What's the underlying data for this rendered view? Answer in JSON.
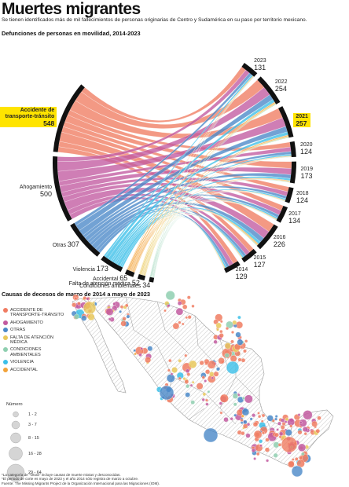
{
  "title": "Muertes migrantes",
  "subtitle": "Se tienen identificados más de mil fallecimientos de personas originarias de Centro y Sudamérica en su paso por territorio mexicano.",
  "section1_title": "Defunciones de personas en movilidad, 2014-2023",
  "section2_title": "Causas de decesos de marzo de 2014 a mayo de 2023",
  "chart_data": [
    {
      "type": "chord",
      "title": "Defunciones de personas en movilidad, 2014-2023",
      "causes": [
        {
          "name": "Accidente de transporte-tránsito",
          "value": 548,
          "color": "#f07c62",
          "highlight": true
        },
        {
          "name": "Ahogamiento",
          "value": 500,
          "color": "#c25aa0",
          "highlight": false
        },
        {
          "name": "Otras",
          "value": 307,
          "color": "#4a88c8",
          "highlight": false
        },
        {
          "name": "Violencia",
          "value": 173,
          "color": "#3bbfe8",
          "highlight": false
        },
        {
          "name": "Accidental",
          "value": 65,
          "color": "#f2a33a",
          "highlight": false
        },
        {
          "name": "Falta de atención médica",
          "value": 52,
          "color": "#e9c85a",
          "highlight": false
        },
        {
          "name": "Condiciones ambientales",
          "value": 34,
          "color": "#8fcfb0",
          "highlight": false
        }
      ],
      "years": [
        {
          "year": "2023",
          "value": 131,
          "highlight": false
        },
        {
          "year": "2022",
          "value": 254,
          "highlight": false
        },
        {
          "year": "2021",
          "value": 257,
          "highlight": true
        },
        {
          "year": "2020",
          "value": 124,
          "highlight": false
        },
        {
          "year": "2019",
          "value": 173,
          "highlight": false
        },
        {
          "year": "2018",
          "value": 124,
          "highlight": false
        },
        {
          "year": "2017",
          "value": 134,
          "highlight": false
        },
        {
          "year": "2016",
          "value": 226,
          "highlight": false
        },
        {
          "year": "2015",
          "value": 127,
          "highlight": false
        },
        {
          "year": "2014",
          "value": 129,
          "highlight": false
        }
      ]
    },
    {
      "type": "scatter",
      "title": "Causas de decesos de marzo de 2014 a mayo de 2023",
      "legend": [
        {
          "name": "Accidente de transporte-tránsito",
          "color": "#f07c62"
        },
        {
          "name": "Ahogamiento",
          "color": "#c25aa0"
        },
        {
          "name": "Otras",
          "color": "#4a88c8"
        },
        {
          "name": "Falta de atención médica",
          "color": "#e9c85a"
        },
        {
          "name": "Condiciones ambientales",
          "color": "#8fcfb0"
        },
        {
          "name": "Violencia",
          "color": "#3bbfe8"
        },
        {
          "name": "Accidental",
          "color": "#f2a33a"
        }
      ],
      "size_legend": {
        "title": "Número",
        "classes": [
          "1 - 2",
          "3 - 7",
          "8 - 15",
          "16 - 28",
          "29 - 64"
        ]
      }
    }
  ],
  "footnotes": [
    "*La categoría de \"Otras\" incluye causas de muerte mixtas y desconocidas.",
    "*El periodo de corte es mayo de 2023 y el año 2014 sólo registra de marzo a octubre.",
    "Fuente: The Missing Migrants Project de la Organización Internacional para las Migraciones (IOM)."
  ]
}
